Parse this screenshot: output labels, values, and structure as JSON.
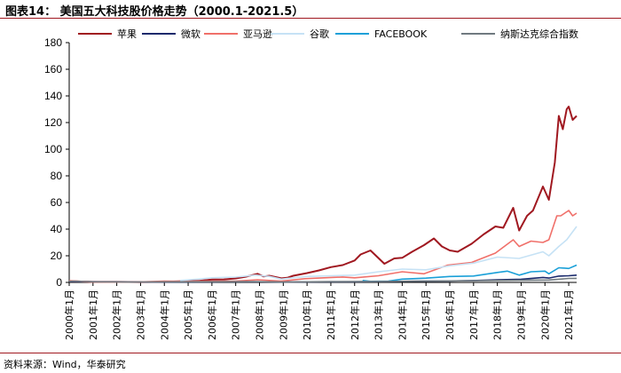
{
  "header": {
    "title": "图表14： 美国五大科技股价格走势（2000.1-2021.5）"
  },
  "footer": {
    "source": "资料来源：Wind，华泰研究"
  },
  "colors": {
    "apple": "#a01820",
    "microsoft": "#1a2a6c",
    "amazon": "#f0706a",
    "google": "#c6e2f5",
    "facebook": "#1aa0d8",
    "nasdaq": "#707a80"
  },
  "chart_data": {
    "type": "line",
    "title": "",
    "xlabel": "",
    "ylabel": "",
    "ylim": [
      0,
      180
    ],
    "yticks": [
      0,
      20,
      40,
      60,
      80,
      100,
      120,
      140,
      160,
      180
    ],
    "xlim": [
      "2000-01",
      "2021-05"
    ],
    "xticks": [
      "2000年1月",
      "2001年1月",
      "2002年1月",
      "2003年1月",
      "2004年1月",
      "2005年1月",
      "2006年1月",
      "2007年1月",
      "2008年1月",
      "2009年1月",
      "2010年1月",
      "2011年1月",
      "2012年1月",
      "2013年1月",
      "2014年1月",
      "2015年1月",
      "2016年1月",
      "2017年1月",
      "2018年1月",
      "2019年1月",
      "2020年1月",
      "2021年1月"
    ],
    "grid": false,
    "legend_position": "top",
    "series": [
      {
        "key": "apple",
        "name": "苹果",
        "x": [
          "2000-01",
          "2001-01",
          "2002-01",
          "2003-01",
          "2004-01",
          "2005-01",
          "2005-07",
          "2006-01",
          "2006-07",
          "2007-01",
          "2007-06",
          "2007-12",
          "2008-03",
          "2008-06",
          "2008-12",
          "2009-03",
          "2009-06",
          "2010-01",
          "2010-07",
          "2011-01",
          "2011-07",
          "2012-01",
          "2012-04",
          "2012-09",
          "2013-04",
          "2013-09",
          "2014-01",
          "2014-06",
          "2014-12",
          "2015-05",
          "2015-09",
          "2016-01",
          "2016-05",
          "2016-12",
          "2017-06",
          "2017-12",
          "2018-04",
          "2018-09",
          "2018-12",
          "2019-04",
          "2019-07",
          "2019-12",
          "2020-03",
          "2020-06",
          "2020-08",
          "2020-10",
          "2020-12",
          "2021-01",
          "2021-03",
          "2021-05"
        ],
        "y": [
          0.9,
          0.4,
          0.4,
          0.3,
          0.4,
          1.1,
          1.3,
          2.2,
          2.3,
          3.0,
          4.3,
          6.5,
          4.5,
          5.0,
          3.1,
          3.5,
          5.0,
          7.0,
          9.0,
          11.5,
          13.0,
          16.5,
          21.0,
          24.0,
          14.0,
          18.0,
          18.5,
          23.0,
          28.0,
          33.0,
          27.0,
          24.0,
          23.0,
          29.0,
          36.0,
          42.0,
          41.0,
          56.0,
          39.0,
          50.0,
          54.0,
          72.0,
          62.0,
          90.0,
          125.0,
          115.0,
          130.0,
          132.0,
          122.0,
          125.0
        ]
      },
      {
        "key": "microsoft",
        "name": "微软",
        "x": [
          "2000-01",
          "2002-01",
          "2004-01",
          "2006-01",
          "2008-01",
          "2009-03",
          "2010-01",
          "2012-01",
          "2014-01",
          "2015-01",
          "2016-01",
          "2017-01",
          "2018-01",
          "2019-01",
          "2019-12",
          "2020-03",
          "2020-08",
          "2021-01",
          "2021-05"
        ],
        "y": [
          0.6,
          0.4,
          0.3,
          0.4,
          0.5,
          0.3,
          0.4,
          0.5,
          0.8,
          0.9,
          1.1,
          1.4,
          2.0,
          2.4,
          3.7,
          3.3,
          4.7,
          5.0,
          5.5
        ]
      },
      {
        "key": "amazon",
        "name": "亚马逊",
        "x": [
          "2000-01",
          "2001-01",
          "2002-01",
          "2003-01",
          "2004-01",
          "2005-01",
          "2006-01",
          "2007-01",
          "2007-12",
          "2008-12",
          "2009-12",
          "2010-12",
          "2011-07",
          "2012-01",
          "2013-01",
          "2014-01",
          "2014-12",
          "2015-12",
          "2016-12",
          "2017-12",
          "2018-09",
          "2018-12",
          "2019-06",
          "2019-12",
          "2020-03",
          "2020-07",
          "2020-09",
          "2021-01",
          "2021-03",
          "2021-05"
        ],
        "y": [
          1.3,
          0.3,
          0.2,
          0.4,
          0.9,
          0.8,
          0.9,
          1.0,
          2.0,
          1.0,
          2.8,
          3.6,
          4.1,
          3.5,
          5.0,
          8.0,
          6.5,
          13.0,
          15.0,
          22.0,
          32.0,
          27.0,
          31.0,
          30.0,
          32.0,
          50.0,
          50.0,
          54.0,
          50.0,
          52.0
        ]
      },
      {
        "key": "google",
        "name": "谷歌",
        "x": [
          "2004-09",
          "2005-06",
          "2006-01",
          "2007-01",
          "2007-11",
          "2008-06",
          "2008-12",
          "2009-06",
          "2010-01",
          "2011-01",
          "2012-01",
          "2013-01",
          "2014-01",
          "2015-01",
          "2016-01",
          "2017-01",
          "2018-01",
          "2018-12",
          "2019-12",
          "2020-03",
          "2020-08",
          "2020-12",
          "2021-03",
          "2021-05"
        ],
        "y": [
          1.5,
          2.5,
          3.5,
          4.0,
          5.5,
          4.5,
          2.5,
          3.5,
          4.5,
          5.0,
          5.5,
          8.0,
          10.0,
          9.5,
          12.5,
          14.5,
          19.0,
          18.0,
          23.0,
          20.0,
          27.0,
          32.0,
          38.0,
          42.0
        ]
      },
      {
        "key": "facebook",
        "name": "FACEBOOK",
        "x": [
          "2012-05",
          "2012-09",
          "2013-06",
          "2014-01",
          "2015-01",
          "2016-01",
          "2017-01",
          "2018-01",
          "2018-06",
          "2018-12",
          "2019-06",
          "2020-01",
          "2020-03",
          "2020-08",
          "2021-01",
          "2021-05"
        ],
        "y": [
          1.5,
          0.8,
          1.0,
          2.5,
          3.2,
          4.5,
          4.8,
          7.5,
          8.5,
          5.5,
          8.0,
          8.5,
          6.5,
          11.0,
          10.5,
          13.0
        ]
      },
      {
        "key": "nasdaq",
        "name": "纳斯达克综合指数",
        "x": [
          "2000-01",
          "2000-03",
          "2001-01",
          "2002-09",
          "2004-01",
          "2007-10",
          "2009-03",
          "2011-01",
          "2013-01",
          "2015-01",
          "2017-01",
          "2019-01",
          "2020-03",
          "2021-01",
          "2021-05"
        ],
        "y": [
          0.8,
          1.0,
          0.5,
          0.3,
          0.5,
          0.6,
          0.3,
          0.6,
          0.7,
          1.0,
          1.3,
          1.6,
          1.8,
          3.0,
          3.1
        ]
      }
    ]
  }
}
